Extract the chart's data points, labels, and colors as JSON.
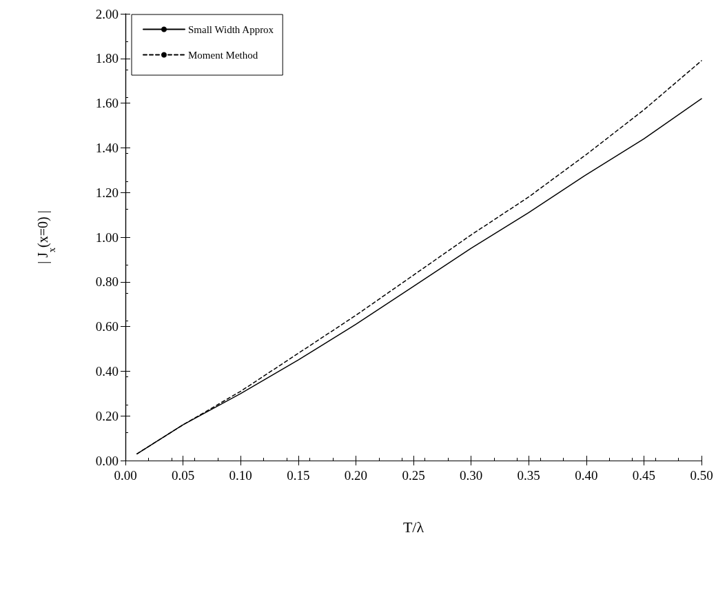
{
  "chart_data": {
    "type": "line",
    "xlabel": "T/λ",
    "ylabel": "| J$_{x}$(x=0) |",
    "legend": "top left",
    "grid": false,
    "marker": "none",
    "xlim": [
      0,
      0.5
    ],
    "ylim": [
      0,
      2
    ],
    "xticks": [
      {
        "value": 0,
        "label": "0.00"
      },
      {
        "value": 0.05,
        "label": "0.05"
      },
      {
        "value": 0.1,
        "label": "0.10"
      },
      {
        "value": 0.15,
        "label": "0.15"
      },
      {
        "value": 0.2,
        "label": "0.20"
      },
      {
        "value": 0.25,
        "label": "0.25"
      },
      {
        "value": 0.3,
        "label": "0.30"
      },
      {
        "value": 0.35,
        "label": "0.35"
      },
      {
        "value": 0.4,
        "label": "0.40"
      },
      {
        "value": 0.45,
        "label": "0.45"
      },
      {
        "value": 0.5,
        "label": "0.50"
      }
    ],
    "yticks": [
      {
        "value": 0,
        "label": "0.00"
      },
      {
        "value": 0.2,
        "label": "0.20"
      },
      {
        "value": 0.4,
        "label": "0.40"
      },
      {
        "value": 0.6,
        "label": "0.60"
      },
      {
        "value": 0.8,
        "label": "0.80"
      },
      {
        "value": 1,
        "label": "1.00"
      },
      {
        "value": 1.2,
        "label": "1.20"
      },
      {
        "value": 1.4,
        "label": "1.40"
      },
      {
        "value": 1.6,
        "label": "1.60"
      },
      {
        "value": 1.8,
        "label": "1.80"
      },
      {
        "value": 2,
        "label": "2.00"
      }
    ],
    "x": [
      0.01,
      0.05,
      0.1,
      0.15,
      0.2,
      0.25,
      0.3,
      0.35,
      0.4,
      0.45,
      0.5
    ],
    "series": [
      {
        "name": "Small Width Approx",
        "color": "#000000",
        "line_style": "solid",
        "values": [
          0.03,
          0.16,
          0.3,
          0.45,
          0.61,
          0.78,
          0.95,
          1.11,
          1.28,
          1.44,
          1.62
        ]
      },
      {
        "name": "Moment Method",
        "color": "#000000",
        "line_style": "dashed",
        "values": [
          0.03,
          0.16,
          0.31,
          0.48,
          0.65,
          0.83,
          1.01,
          1.18,
          1.37,
          1.57,
          1.79
        ]
      }
    ]
  }
}
